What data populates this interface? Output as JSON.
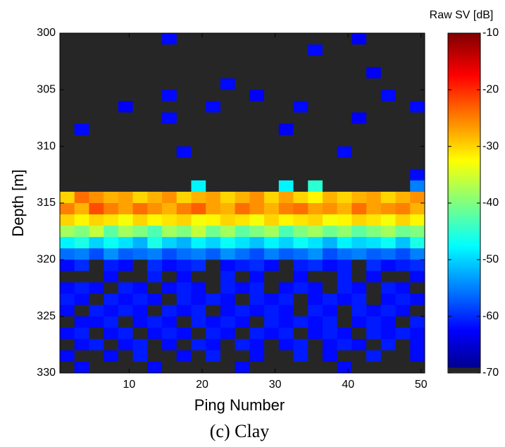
{
  "chart_data": {
    "type": "heatmap",
    "colorbar_label": "Raw SV [dB]",
    "ylabel": "Depth [m]",
    "xlabel": "Ping Number",
    "caption": "(c) Clay",
    "x": [
      1.5,
      3.5,
      5.5,
      7.5,
      9.5,
      11.5,
      13.5,
      15.5,
      17.5,
      19.5,
      21.5,
      23.5,
      25.5,
      27.5,
      29.5,
      31.5,
      33.5,
      35.5,
      37.5,
      39.5,
      41.5,
      43.5,
      45.5,
      47.5,
      49.5
    ],
    "y": [
      300.5,
      301.5,
      302.5,
      303.5,
      304.5,
      305.5,
      306.5,
      307.5,
      308.5,
      309.5,
      310.5,
      311.5,
      312.5,
      313.5,
      314.5,
      315.5,
      316.5,
      317.5,
      318.5,
      319.5,
      320.5,
      321.5,
      322.5,
      323.5,
      324.5,
      325.5,
      326.5,
      327.5,
      328.5,
      329.5
    ],
    "z": [
      [
        -70,
        -70,
        -70,
        -70,
        -70,
        -70,
        -70,
        -62,
        -70,
        -70,
        -70,
        -70,
        -70,
        -70,
        -70,
        -70,
        -70,
        -70,
        -70,
        -70,
        -63,
        -70,
        -70,
        -70,
        -70
      ],
      [
        -70,
        -70,
        -70,
        -70,
        -70,
        -70,
        -70,
        -70,
        -70,
        -70,
        -70,
        -70,
        -70,
        -70,
        -70,
        -70,
        -70,
        -62,
        -70,
        -70,
        -70,
        -70,
        -70,
        -70,
        -70
      ],
      [
        -70,
        -70,
        -70,
        -70,
        -70,
        -70,
        -70,
        -70,
        -70,
        -70,
        -70,
        -70,
        -70,
        -70,
        -70,
        -70,
        -70,
        -70,
        -70,
        -70,
        -70,
        -70,
        -70,
        -70,
        -70
      ],
      [
        -70,
        -70,
        -70,
        -70,
        -70,
        -70,
        -70,
        -70,
        -70,
        -70,
        -70,
        -70,
        -70,
        -70,
        -70,
        -70,
        -70,
        -70,
        -70,
        -70,
        -70,
        -63,
        -70,
        -70,
        -70
      ],
      [
        -70,
        -70,
        -70,
        -70,
        -70,
        -70,
        -70,
        -70,
        -70,
        -70,
        -70,
        -62,
        -70,
        -70,
        -70,
        -70,
        -70,
        -70,
        -70,
        -70,
        -70,
        -70,
        -70,
        -70,
        -70
      ],
      [
        -70,
        -70,
        -70,
        -70,
        -70,
        -70,
        -70,
        -62,
        -70,
        -70,
        -70,
        -70,
        -70,
        -63,
        -70,
        -70,
        -70,
        -70,
        -70,
        -70,
        -70,
        -70,
        -62,
        -70,
        -70
      ],
      [
        -70,
        -70,
        -70,
        -70,
        -63,
        -70,
        -70,
        -70,
        -70,
        -70,
        -62,
        -70,
        -70,
        -70,
        -70,
        -70,
        -62,
        -70,
        -70,
        -70,
        -70,
        -70,
        -70,
        -70,
        -62
      ],
      [
        -70,
        -70,
        -70,
        -70,
        -70,
        -70,
        -70,
        -62,
        -70,
        -70,
        -70,
        -70,
        -70,
        -70,
        -70,
        -70,
        -70,
        -70,
        -70,
        -70,
        -63,
        -70,
        -70,
        -70,
        -70
      ],
      [
        -70,
        -62,
        -70,
        -70,
        -70,
        -70,
        -70,
        -70,
        -70,
        -70,
        -70,
        -70,
        -70,
        -70,
        -70,
        -63,
        -70,
        -70,
        -70,
        -70,
        -70,
        -70,
        -70,
        -70,
        -70
      ],
      [
        -70,
        -70,
        -70,
        -70,
        -70,
        -70,
        -70,
        -70,
        -70,
        -70,
        -70,
        -70,
        -70,
        -70,
        -70,
        -70,
        -70,
        -70,
        -70,
        -70,
        -70,
        -70,
        -70,
        -70,
        -70
      ],
      [
        -70,
        -70,
        -70,
        -70,
        -70,
        -70,
        -70,
        -70,
        -62,
        -70,
        -70,
        -70,
        -70,
        -70,
        -70,
        -70,
        -70,
        -70,
        -70,
        -62,
        -70,
        -70,
        -70,
        -70,
        -70
      ],
      [
        -70,
        -70,
        -70,
        -70,
        -70,
        -70,
        -70,
        -70,
        -70,
        -70,
        -70,
        -70,
        -70,
        -70,
        -70,
        -70,
        -70,
        -70,
        -70,
        -70,
        -70,
        -70,
        -70,
        -70,
        -70
      ],
      [
        -70,
        -70,
        -70,
        -70,
        -70,
        -70,
        -70,
        -70,
        -70,
        -70,
        -70,
        -70,
        -70,
        -70,
        -70,
        -70,
        -70,
        -70,
        -70,
        -70,
        -70,
        -70,
        -70,
        -70,
        -62
      ],
      [
        -70,
        -70,
        -70,
        -70,
        -70,
        -70,
        -70,
        -70,
        -70,
        -48,
        -70,
        -70,
        -70,
        -70,
        -70,
        -48,
        -70,
        -45,
        -70,
        -70,
        -70,
        -70,
        -70,
        -70,
        -55
      ],
      [
        -30,
        -24,
        -26,
        -28,
        -27,
        -30,
        -28,
        -26,
        -30,
        -28,
        -27,
        -30,
        -28,
        -26,
        -30,
        -27,
        -30,
        -32,
        -28,
        -30,
        -28,
        -27,
        -30,
        -28,
        -26
      ],
      [
        -25,
        -28,
        -22,
        -25,
        -27,
        -24,
        -26,
        -28,
        -25,
        -23,
        -27,
        -28,
        -24,
        -26,
        -28,
        -25,
        -24,
        -27,
        -26,
        -28,
        -24,
        -27,
        -26,
        -25,
        -28
      ],
      [
        -30,
        -32,
        -30,
        -31,
        -33,
        -30,
        -32,
        -31,
        -30,
        -33,
        -32,
        -30,
        -31,
        -33,
        -30,
        -32,
        -31,
        -30,
        -33,
        -32,
        -30,
        -31,
        -33,
        -30,
        -32
      ],
      [
        -38,
        -40,
        -36,
        -42,
        -38,
        -40,
        -43,
        -38,
        -40,
        -36,
        -41,
        -38,
        -42,
        -40,
        -38,
        -43,
        -40,
        -38,
        -41,
        -39,
        -42,
        -40,
        -38,
        -41,
        -40
      ],
      [
        -48,
        -46,
        -50,
        -47,
        -49,
        -52,
        -46,
        -50,
        -52,
        -48,
        -50,
        -47,
        -49,
        -51,
        -48,
        -50,
        -47,
        -49,
        -52,
        -48,
        -50,
        -49,
        -47,
        -51,
        -46
      ],
      [
        -56,
        -55,
        -58,
        -54,
        -57,
        -56,
        -55,
        -58,
        -56,
        -55,
        -57,
        -54,
        -56,
        -58,
        -55,
        -57,
        -56,
        -54,
        -58,
        -56,
        -55,
        -57,
        -56,
        -58,
        -55
      ],
      [
        -62,
        -60,
        -70,
        -61,
        -62,
        -70,
        -60,
        -62,
        -61,
        -60,
        -70,
        -62,
        -61,
        -60,
        -62,
        -70,
        -61,
        -60,
        -62,
        -61,
        -70,
        -60,
        -62,
        -61,
        -60
      ],
      [
        -70,
        -70,
        -70,
        -62,
        -70,
        -70,
        -61,
        -70,
        -62,
        -70,
        -70,
        -61,
        -70,
        -62,
        -70,
        -70,
        -62,
        -70,
        -70,
        -61,
        -70,
        -62,
        -70,
        -70,
        -62
      ],
      [
        -62,
        -61,
        -62,
        -70,
        -61,
        -62,
        -70,
        -62,
        -61,
        -62,
        -70,
        -61,
        -62,
        -61,
        -70,
        -62,
        -61,
        -62,
        -70,
        -61,
        -62,
        -70,
        -61,
        -62,
        -70
      ],
      [
        -61,
        -62,
        -70,
        -61,
        -62,
        -61,
        -62,
        -70,
        -61,
        -62,
        -61,
        -62,
        -70,
        -61,
        -62,
        -61,
        -70,
        -62,
        -61,
        -62,
        -61,
        -70,
        -62,
        -61,
        -62
      ],
      [
        -62,
        -70,
        -61,
        -62,
        -61,
        -62,
        -70,
        -61,
        -62,
        -61,
        -70,
        -62,
        -61,
        -62,
        -61,
        -62,
        -70,
        -61,
        -62,
        -70,
        -61,
        -62,
        -61,
        -62,
        -70
      ],
      [
        -70,
        -62,
        -62,
        -61,
        -70,
        -62,
        -61,
        -62,
        -70,
        -61,
        -62,
        -61,
        -62,
        -70,
        -61,
        -62,
        -61,
        -62,
        -61,
        -70,
        -62,
        -61,
        -62,
        -70,
        -61
      ],
      [
        -62,
        -61,
        -70,
        -62,
        -61,
        -70,
        -62,
        -61,
        -62,
        -70,
        -61,
        -62,
        -70,
        -61,
        -62,
        -61,
        -70,
        -62,
        -61,
        -62,
        -70,
        -61,
        -62,
        -61,
        -62
      ],
      [
        -70,
        -62,
        -61,
        -70,
        -62,
        -61,
        -70,
        -62,
        -70,
        -61,
        -62,
        -70,
        -61,
        -62,
        -70,
        -62,
        -61,
        -70,
        -62,
        -61,
        -62,
        -70,
        -61,
        -70,
        -62
      ],
      [
        -62,
        -70,
        -70,
        -62,
        -70,
        -61,
        -70,
        -70,
        -62,
        -70,
        -61,
        -70,
        -70,
        -62,
        -70,
        -70,
        -61,
        -70,
        -62,
        -70,
        -70,
        -61,
        -70,
        -70,
        -62
      ],
      [
        -70,
        -62,
        -70,
        -70,
        -70,
        -70,
        -62,
        -70,
        -70,
        -70,
        -70,
        -70,
        -62,
        -70,
        -70,
        -70,
        -70,
        -70,
        -70,
        -62,
        -70,
        -70,
        -70,
        -70,
        -70
      ]
    ],
    "xlim": [
      0.5,
      50.5
    ],
    "xticks": [
      10,
      20,
      30,
      40,
      50
    ],
    "ylim": [
      300,
      330
    ],
    "yticks": [
      300,
      305,
      310,
      315,
      320,
      325,
      330
    ],
    "y_reversed": true,
    "clim": [
      -70,
      -10
    ],
    "cticks": [
      -10,
      -20,
      -30,
      -40,
      -50,
      -60,
      -70
    ],
    "colormap": "jet",
    "floor_color": "#262626"
  }
}
